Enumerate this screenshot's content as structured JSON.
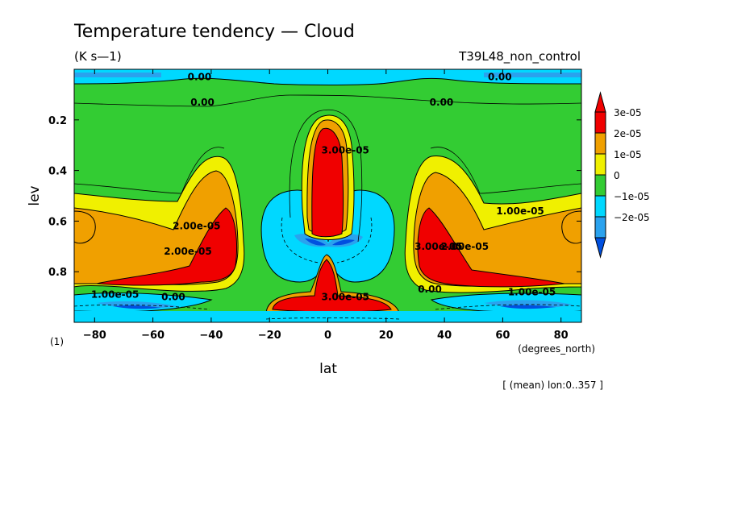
{
  "colors": {
    "red": "#f00000",
    "orange": "#f0a000",
    "yellow": "#f0f000",
    "green": "#33cc33",
    "cyan": "#00d8ff",
    "blue": "#2aa2ee",
    "navy": "#0050e0"
  },
  "chart_data": {
    "type": "contour",
    "title": "Temperature tendency — Cloud",
    "units": "(K s—1)",
    "run_label": "T39L48_non_control",
    "xlabel": "lat",
    "x_unit_label": "(degrees_north)",
    "ylabel": "lev",
    "y_corner_label": "(1)",
    "footer": "[ (mean) lon:0..357 ]",
    "xlim": [
      -87,
      87
    ],
    "ylim": [
      1.0,
      0.0
    ],
    "x_ticks": [
      {
        "value": -80,
        "label": "−80"
      },
      {
        "value": -60,
        "label": "−60"
      },
      {
        "value": -40,
        "label": "−40"
      },
      {
        "value": -20,
        "label": "−20"
      },
      {
        "value": 0,
        "label": "0"
      },
      {
        "value": 20,
        "label": "20"
      },
      {
        "value": 40,
        "label": "40"
      },
      {
        "value": 60,
        "label": "60"
      },
      {
        "value": 80,
        "label": "80"
      }
    ],
    "y_ticks": [
      {
        "value": 0.2,
        "label": "0.2"
      },
      {
        "value": 0.4,
        "label": "0.4"
      },
      {
        "value": 0.6,
        "label": "0.6"
      },
      {
        "value": 0.8,
        "label": "0.8"
      }
    ],
    "legend": [
      {
        "label": "3e-05",
        "color": "#f00000"
      },
      {
        "label": "2e-05",
        "color": "#f0a000"
      },
      {
        "label": "1e-05",
        "color": "#f0f000"
      },
      {
        "label": "0",
        "color": "#33cc33"
      },
      {
        "label": "−1e-05",
        "color": "#00d8ff"
      },
      {
        "label": "−2e-05",
        "color": "#2aa2ee"
      }
    ],
    "contour_labels": [
      {
        "lat": -44,
        "lev": 0.03,
        "text": "0.00"
      },
      {
        "lat": 59,
        "lev": 0.03,
        "text": "0.00"
      },
      {
        "lat": -43,
        "lev": 0.13,
        "text": "0.00"
      },
      {
        "lat": 39,
        "lev": 0.13,
        "text": "0.00"
      },
      {
        "lat": -45,
        "lev": 0.62,
        "text": "2.00e-05"
      },
      {
        "lat": -48,
        "lev": 0.72,
        "text": "2.00e-05"
      },
      {
        "lat": 47,
        "lev": 0.7,
        "text": "2.00e-05"
      },
      {
        "lat": 38,
        "lev": 0.7,
        "text": "3.00e-05"
      },
      {
        "lat": 66,
        "lev": 0.56,
        "text": "1.00e-05"
      },
      {
        "lat": 6,
        "lev": 0.32,
        "text": "3.00e-05"
      },
      {
        "lat": 6,
        "lev": 0.9,
        "text": "3.00e-05"
      },
      {
        "lat": -53,
        "lev": 0.9,
        "text": "0.00"
      },
      {
        "lat": 35,
        "lev": 0.87,
        "text": "0.00"
      },
      {
        "lat": -73,
        "lev": 0.89,
        "text": "1.00e-05"
      },
      {
        "lat": 70,
        "lev": 0.88,
        "text": "1.00e-05"
      }
    ]
  }
}
